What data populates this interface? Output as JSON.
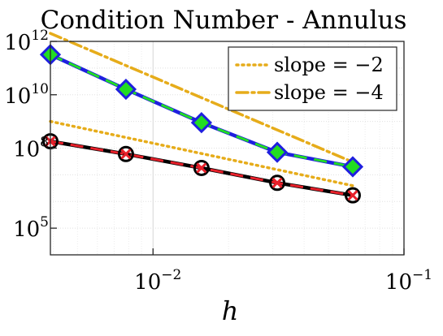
{
  "chart_data": {
    "type": "line",
    "title": "Condition Number - Annulus",
    "xlabel": "h",
    "ylabel": "",
    "xscale": "log",
    "yscale": "log",
    "xlim": [
      0.0039,
      0.1
    ],
    "ylim": [
      10000,
      1000000000000
    ],
    "grid": true,
    "legend_position": "top-right",
    "x_ticks": [
      {
        "value": 0.01,
        "base": "10",
        "exp": "−2"
      },
      {
        "value": 0.1,
        "base": "10",
        "exp": "−1"
      }
    ],
    "y_ticks": [
      {
        "value": 100000,
        "base": "10",
        "exp": "5"
      },
      {
        "value": 100000000,
        "base": "10",
        "exp": "8"
      },
      {
        "value": 10000000000,
        "base": "10",
        "exp": "10"
      },
      {
        "value": 1000000000000,
        "base": "10",
        "exp": "12"
      }
    ],
    "series": [
      {
        "color": "#1f1fdf",
        "dash_color": "#22dd22",
        "marker": "diamond",
        "x": [
          0.0039,
          0.0078,
          0.0156,
          0.03125,
          0.0625
        ],
        "y": [
          320000000000,
          16000000000,
          900000000,
          70000000,
          20000000
        ]
      },
      {
        "color": "#000000",
        "dash_color": "#e8202a",
        "marker": "circle-x",
        "x": [
          0.0039,
          0.0078,
          0.0156,
          0.03125,
          0.0625
        ],
        "y": [
          180000000,
          60000000,
          18000000,
          5000000,
          1700000
        ]
      },
      {
        "name": "slope = −2",
        "color": "#e6ac1a",
        "style": "dotted",
        "x": [
          0.0039,
          0.0625
        ],
        "y": [
          1000000000,
          3900000
        ]
      },
      {
        "name": "slope = −4",
        "color": "#e6ac1a",
        "style": "dashdot",
        "x": [
          0.0039,
          0.0625
        ],
        "y": [
          2000000000000,
          30000000
        ]
      }
    ]
  }
}
